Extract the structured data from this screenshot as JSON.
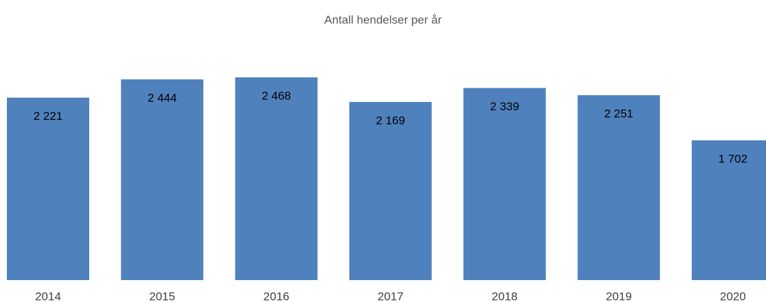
{
  "chart_data": {
    "type": "bar",
    "title": "Antall hendelser per år",
    "categories": [
      "2014",
      "2015",
      "2016",
      "2017",
      "2018",
      "2019",
      "2020"
    ],
    "values": [
      2221,
      2444,
      2468,
      2169,
      2339,
      2251,
      1702
    ],
    "value_labels": [
      "2 221",
      "2 444",
      "2 468",
      "2 169",
      "2 339",
      "2 251",
      "1 702"
    ],
    "color": "#4f81bd"
  }
}
